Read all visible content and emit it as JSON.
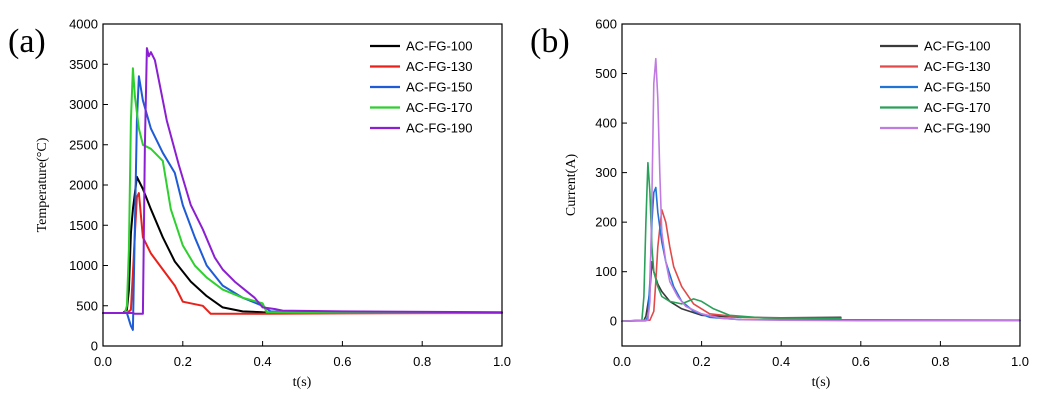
{
  "chart_data": [
    {
      "panel_label": "(a)",
      "type": "line",
      "title": "",
      "xlabel": "t(s)",
      "ylabel": "Temperature(°C)",
      "xlim": [
        0.0,
        1.0
      ],
      "ylim": [
        0,
        4000
      ],
      "xticks": [
        0.0,
        0.2,
        0.4,
        0.6,
        0.8,
        1.0
      ],
      "xtick_labels": [
        "0.0",
        "0.2",
        "0.4",
        "0.6",
        "0.8",
        "1.0"
      ],
      "yticks": [
        0,
        500,
        1000,
        1500,
        2000,
        2500,
        3000,
        3500,
        4000
      ],
      "ytick_labels": [
        "0",
        "500",
        "1000",
        "1500",
        "2000",
        "2500",
        "3000",
        "3500",
        "4000"
      ],
      "grid": false,
      "legend_position": "top-right",
      "series": [
        {
          "name": "AC-FG-100",
          "color": "#000000",
          "x": [
            0,
            0.05,
            0.06,
            0.065,
            0.07,
            0.075,
            0.085,
            0.1,
            0.12,
            0.15,
            0.18,
            0.22,
            0.26,
            0.3,
            0.35,
            0.4,
            0.5,
            0.7,
            1.0
          ],
          "y": [
            410,
            410,
            450,
            700,
            1400,
            1700,
            2100,
            1950,
            1700,
            1350,
            1050,
            800,
            620,
            480,
            430,
            420,
            415,
            412,
            412
          ]
        },
        {
          "name": "AC-FG-130",
          "color": "#e8211a",
          "x": [
            0,
            0.06,
            0.07,
            0.075,
            0.08,
            0.085,
            0.09,
            0.1,
            0.12,
            0.15,
            0.18,
            0.2,
            0.25,
            0.27,
            0.4,
            0.6,
            1.0
          ],
          "y": [
            410,
            410,
            450,
            900,
            1400,
            1850,
            1900,
            1350,
            1150,
            950,
            750,
            550,
            500,
            400,
            400,
            405,
            410
          ]
        },
        {
          "name": "AC-FG-150",
          "color": "#1f5bd6",
          "x": [
            0,
            0.06,
            0.07,
            0.075,
            0.08,
            0.085,
            0.09,
            0.1,
            0.12,
            0.15,
            0.18,
            0.2,
            0.23,
            0.26,
            0.3,
            0.35,
            0.4,
            0.42,
            0.5,
            1.0
          ],
          "y": [
            410,
            410,
            250,
            200,
            1500,
            2800,
            3350,
            3050,
            2700,
            2400,
            2150,
            1750,
            1350,
            1000,
            750,
            600,
            500,
            430,
            415,
            412
          ]
        },
        {
          "name": "AC-FG-170",
          "color": "#2fcf2f",
          "x": [
            0,
            0.055,
            0.06,
            0.065,
            0.07,
            0.075,
            0.08,
            0.085,
            0.09,
            0.1,
            0.12,
            0.15,
            0.17,
            0.2,
            0.23,
            0.26,
            0.3,
            0.35,
            0.4,
            0.41,
            0.5,
            1.0
          ],
          "y": [
            410,
            410,
            500,
            1200,
            2800,
            3450,
            3100,
            2900,
            2700,
            2500,
            2450,
            2300,
            1700,
            1250,
            1000,
            850,
            700,
            600,
            530,
            420,
            415,
            412
          ]
        },
        {
          "name": "AC-FG-190",
          "color": "#8b1fd1",
          "x": [
            0,
            0.075,
            0.08,
            0.1,
            0.105,
            0.11,
            0.115,
            0.12,
            0.13,
            0.14,
            0.16,
            0.19,
            0.22,
            0.25,
            0.28,
            0.3,
            0.33,
            0.36,
            0.38,
            0.4,
            0.43,
            0.45,
            0.6,
            1.0
          ],
          "y": [
            410,
            410,
            400,
            400,
            2500,
            3700,
            3600,
            3650,
            3550,
            3300,
            2800,
            2250,
            1750,
            1450,
            1100,
            950,
            800,
            680,
            600,
            480,
            460,
            440,
            430,
            420
          ]
        }
      ]
    },
    {
      "panel_label": "(b)",
      "type": "line",
      "title": "",
      "xlabel": "t(s)",
      "ylabel": "Current(A)",
      "xlim": [
        0.0,
        1.0
      ],
      "ylim": [
        -50,
        600
      ],
      "xticks": [
        0.0,
        0.2,
        0.4,
        0.6,
        0.8,
        1.0
      ],
      "xtick_labels": [
        "0.0",
        "0.2",
        "0.4",
        "0.6",
        "0.8",
        "1.0"
      ],
      "yticks": [
        0,
        100,
        200,
        300,
        400,
        500,
        600
      ],
      "ytick_labels": [
        "0",
        "100",
        "200",
        "300",
        "400",
        "500",
        "600"
      ],
      "grid": false,
      "legend_position": "top-right",
      "series": [
        {
          "name": "AC-FG-100",
          "color": "#3a3a3a",
          "x": [
            0,
            0.055,
            0.06,
            0.07,
            0.075,
            0.08,
            0.09,
            0.1,
            0.12,
            0.15,
            0.2,
            0.3,
            0.4,
            0.55
          ],
          "y": [
            0,
            2,
            10,
            60,
            120,
            100,
            75,
            60,
            40,
            25,
            12,
            8,
            7,
            8
          ]
        },
        {
          "name": "AC-FG-130",
          "color": "#e14a4a",
          "x": [
            0,
            0.07,
            0.08,
            0.085,
            0.09,
            0.1,
            0.11,
            0.12,
            0.13,
            0.15,
            0.18,
            0.22,
            0.3,
            0.4,
            0.55
          ],
          "y": [
            0,
            2,
            20,
            80,
            150,
            225,
            200,
            150,
            110,
            70,
            35,
            15,
            8,
            6,
            6
          ]
        },
        {
          "name": "AC-FG-150",
          "color": "#1f74d6",
          "x": [
            0,
            0.06,
            0.065,
            0.07,
            0.075,
            0.08,
            0.085,
            0.09,
            0.1,
            0.11,
            0.13,
            0.15,
            0.18,
            0.22,
            0.3,
            1.0
          ],
          "y": [
            0,
            1,
            10,
            80,
            200,
            260,
            270,
            220,
            160,
            120,
            70,
            40,
            20,
            8,
            3,
            2
          ]
        },
        {
          "name": "AC-FG-170",
          "color": "#2aa05a",
          "x": [
            0,
            0.05,
            0.055,
            0.06,
            0.065,
            0.07,
            0.075,
            0.08,
            0.09,
            0.1,
            0.12,
            0.15,
            0.18,
            0.2,
            0.23,
            0.27,
            0.35,
            0.55
          ],
          "y": [
            0,
            2,
            50,
            200,
            320,
            260,
            150,
            100,
            70,
            50,
            40,
            35,
            45,
            40,
            25,
            12,
            7,
            6
          ]
        },
        {
          "name": "AC-FG-190",
          "color": "#c07be0",
          "x": [
            0,
            0.065,
            0.07,
            0.075,
            0.08,
            0.085,
            0.09,
            0.095,
            0.1,
            0.11,
            0.12,
            0.14,
            0.16,
            0.2,
            0.25,
            0.3,
            0.4,
            0.6,
            0.8,
            1.0
          ],
          "y": [
            0,
            2,
            40,
            250,
            480,
            530,
            450,
            300,
            180,
            120,
            80,
            50,
            30,
            15,
            6,
            3,
            2,
            1,
            1,
            1
          ]
        }
      ]
    }
  ]
}
